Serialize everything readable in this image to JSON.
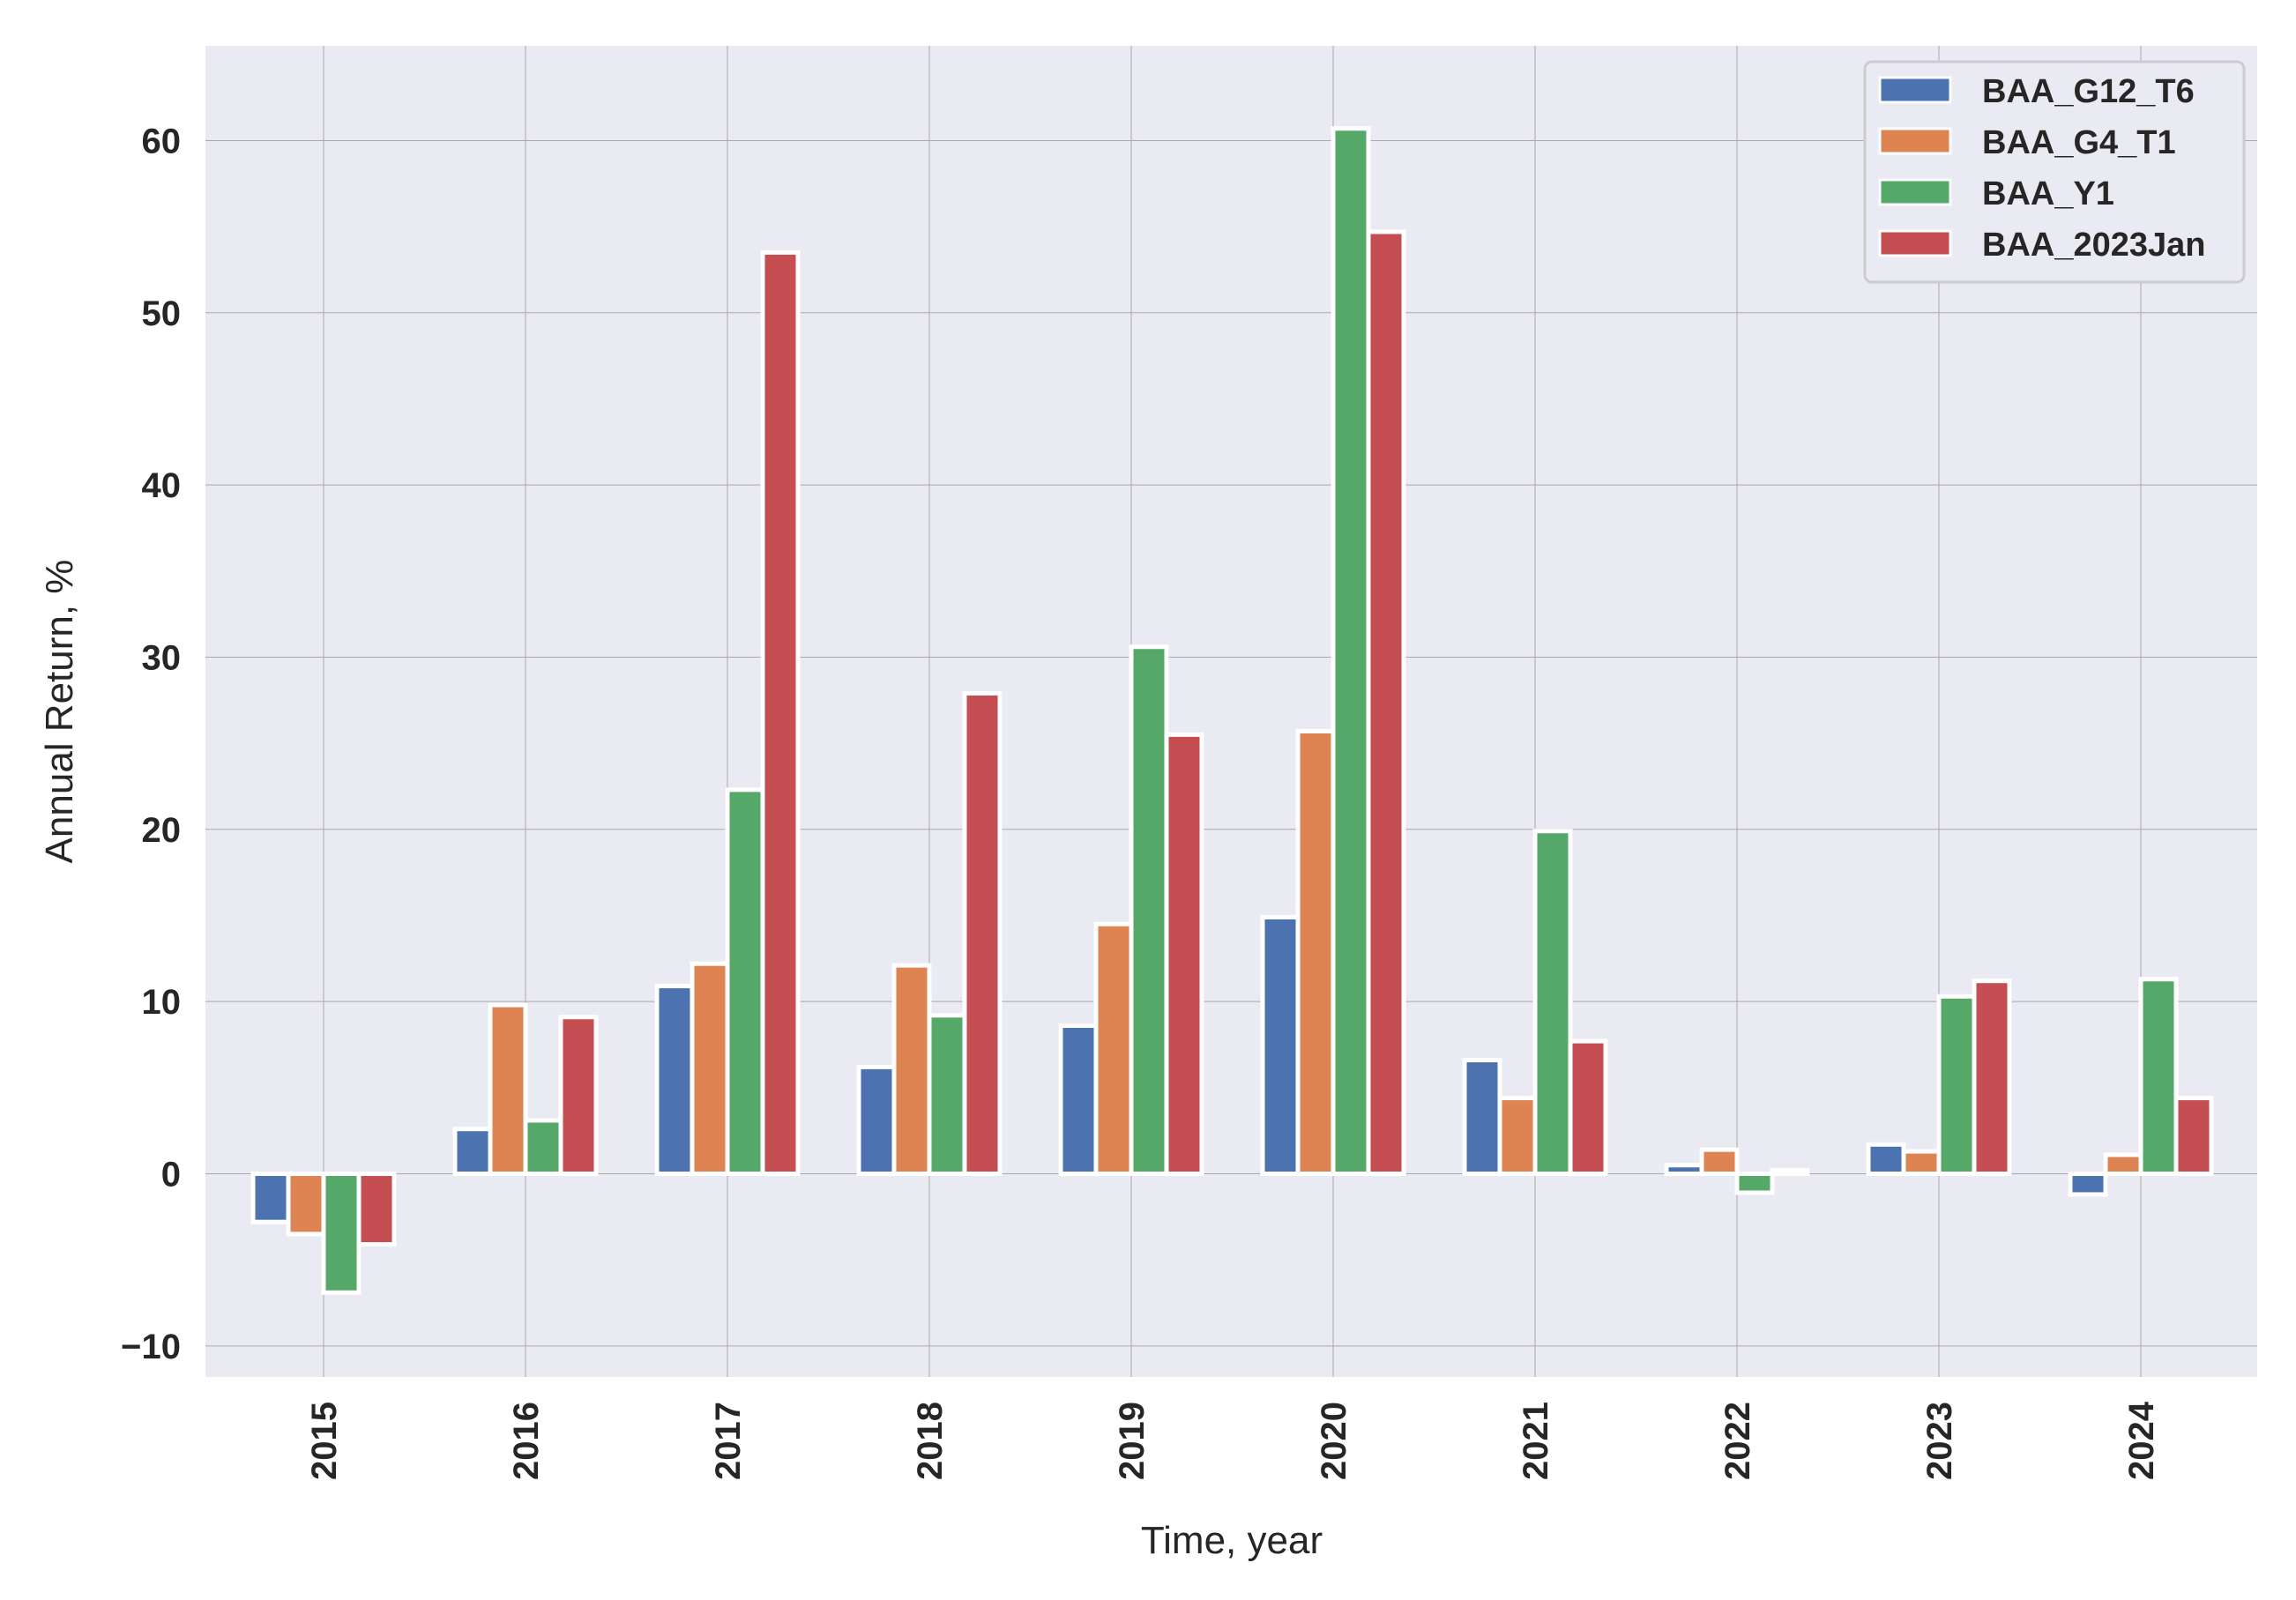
{
  "chart_data": {
    "type": "bar",
    "categories": [
      "2015",
      "2016",
      "2017",
      "2018",
      "2019",
      "2020",
      "2021",
      "2022",
      "2023",
      "2024"
    ],
    "series": [
      {
        "name": "BAA_G12_T6",
        "color": "#4c72b0",
        "values": [
          -2.8,
          2.6,
          10.9,
          6.2,
          8.6,
          14.9,
          6.6,
          0.5,
          1.7,
          -1.2
        ]
      },
      {
        "name": "BAA_G4_T1",
        "color": "#dd8452",
        "values": [
          -3.5,
          9.8,
          12.2,
          12.1,
          14.5,
          25.7,
          4.4,
          1.4,
          1.3,
          1.1
        ]
      },
      {
        "name": "BAA_Y1",
        "color": "#55a868",
        "values": [
          -6.9,
          3.1,
          22.3,
          9.2,
          30.6,
          60.7,
          19.9,
          -1.1,
          10.3,
          11.3
        ]
      },
      {
        "name": "BAA_2023Jan",
        "color": "#c44e52",
        "values": [
          -4.1,
          9.1,
          53.5,
          27.9,
          25.5,
          54.7,
          7.7,
          0.2,
          11.2,
          4.4
        ]
      }
    ],
    "xlabel": "Time, year",
    "ylabel": "Annual Return, %",
    "ylim": [
      -11.8,
      65.5
    ],
    "yticks": [
      -10,
      0,
      10,
      20,
      30,
      40,
      50,
      60
    ],
    "ytick_labels": [
      "−10",
      "0",
      "10",
      "20",
      "30",
      "40",
      "50",
      "60"
    ],
    "grid": true,
    "legend_position": "top-right",
    "background_color": "#eaeaf2",
    "grid_color": "#a9a9a9",
    "edge_color": "#ffffff"
  }
}
